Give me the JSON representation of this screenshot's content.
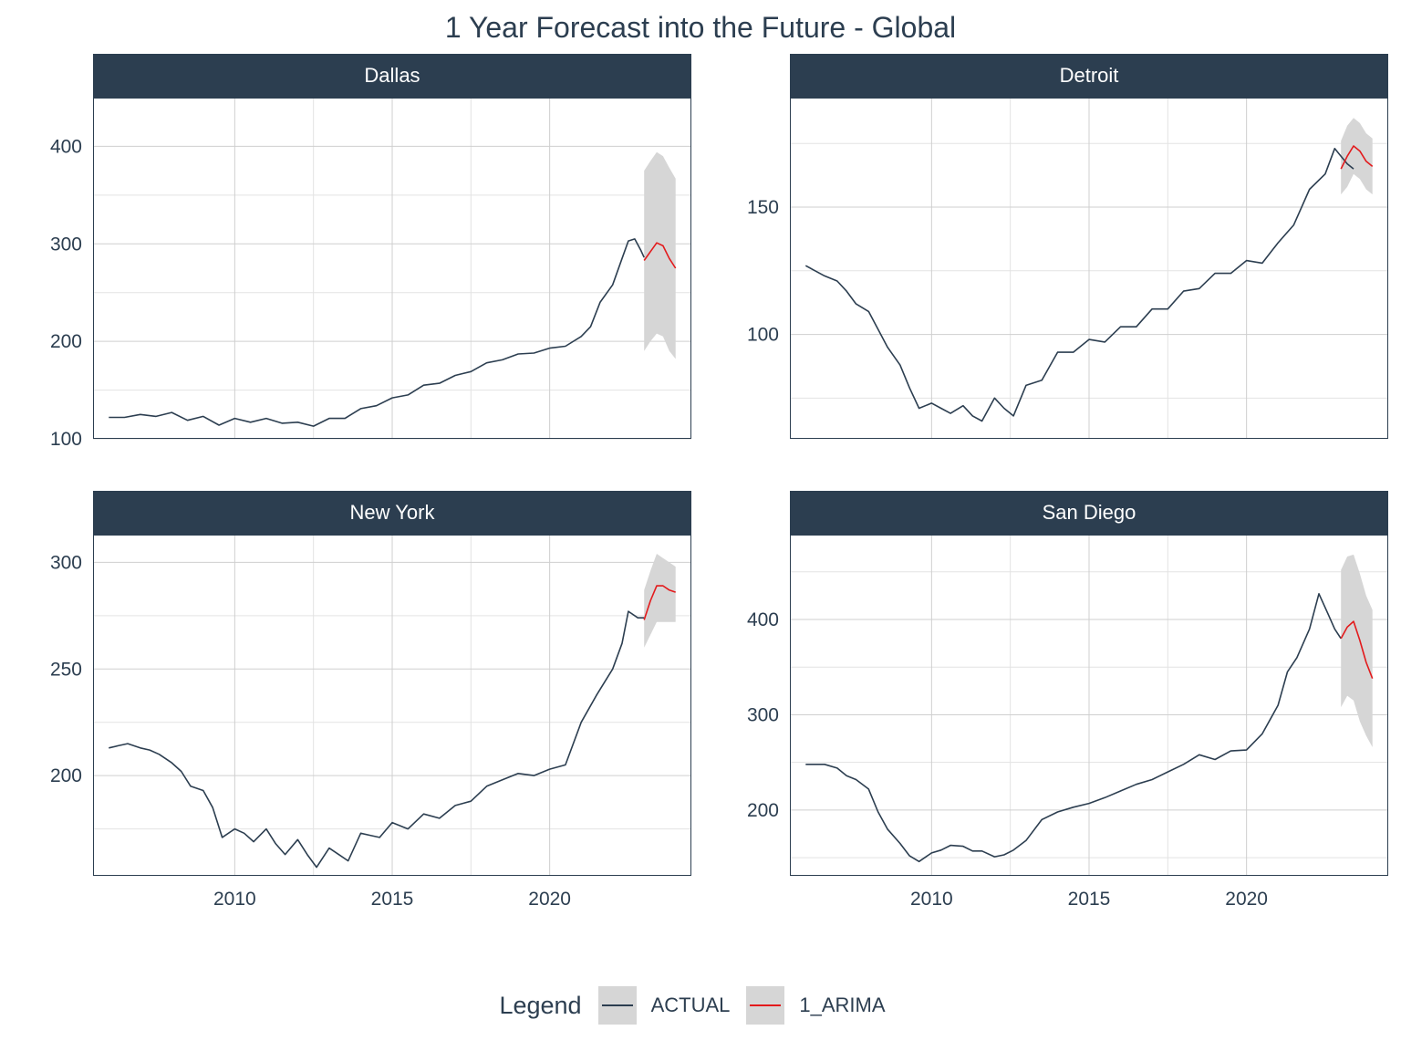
{
  "chart_data": {
    "type": "line",
    "title": "1 Year Forecast into the Future - Global",
    "legend": {
      "title": "Legend",
      "placement": "bottom",
      "entries": [
        {
          "label": "ACTUAL",
          "color": "#2C3E50"
        },
        {
          "label": "1_ARIMA",
          "color": "#E31A1C"
        }
      ]
    },
    "band_color": "#D6D6D6",
    "grid": true,
    "xlim": [
      2005.5,
      2024.5
    ],
    "x_ticks": [
      2010,
      2015,
      2020
    ],
    "panels": [
      {
        "name": "Dallas",
        "ylim": [
          100,
          450
        ],
        "y_ticks": [
          100,
          200,
          300,
          400
        ],
        "minor_y": [
          150,
          250,
          350
        ],
        "actual": [
          [
            2006.0,
            122
          ],
          [
            2006.5,
            122
          ],
          [
            2007.0,
            125
          ],
          [
            2007.5,
            123
          ],
          [
            2008.0,
            127
          ],
          [
            2008.5,
            119
          ],
          [
            2009.0,
            123
          ],
          [
            2009.5,
            114
          ],
          [
            2010.0,
            121
          ],
          [
            2010.5,
            117
          ],
          [
            2011.0,
            121
          ],
          [
            2011.5,
            116
          ],
          [
            2012.0,
            117
          ],
          [
            2012.5,
            113
          ],
          [
            2013.0,
            121
          ],
          [
            2013.5,
            121
          ],
          [
            2014.0,
            131
          ],
          [
            2014.5,
            134
          ],
          [
            2015.0,
            142
          ],
          [
            2015.5,
            145
          ],
          [
            2016.0,
            155
          ],
          [
            2016.5,
            157
          ],
          [
            2017.0,
            165
          ],
          [
            2017.5,
            169
          ],
          [
            2018.0,
            178
          ],
          [
            2018.5,
            181
          ],
          [
            2019.0,
            187
          ],
          [
            2019.5,
            188
          ],
          [
            2020.0,
            193
          ],
          [
            2020.5,
            195
          ],
          [
            2021.0,
            205
          ],
          [
            2021.3,
            215
          ],
          [
            2021.6,
            240
          ],
          [
            2022.0,
            258
          ],
          [
            2022.3,
            285
          ],
          [
            2022.5,
            303
          ],
          [
            2022.7,
            305
          ],
          [
            2022.9,
            293
          ],
          [
            2023.0,
            286
          ]
        ],
        "forecast": [
          [
            2023.0,
            283
          ],
          [
            2023.2,
            292
          ],
          [
            2023.4,
            301
          ],
          [
            2023.6,
            298
          ],
          [
            2023.8,
            285
          ],
          [
            2024.0,
            275
          ]
        ],
        "lower": [
          [
            2023.0,
            190
          ],
          [
            2023.2,
            200
          ],
          [
            2023.4,
            208
          ],
          [
            2023.6,
            205
          ],
          [
            2023.8,
            190
          ],
          [
            2024.0,
            182
          ]
        ],
        "upper": [
          [
            2023.0,
            375
          ],
          [
            2023.2,
            385
          ],
          [
            2023.4,
            394
          ],
          [
            2023.6,
            390
          ],
          [
            2023.8,
            378
          ],
          [
            2024.0,
            367
          ]
        ]
      },
      {
        "name": "Detroit",
        "ylim": [
          59,
          193
        ],
        "y_ticks": [
          100,
          150
        ],
        "minor_y": [
          75,
          125,
          175
        ],
        "actual": [
          [
            2006.0,
            127
          ],
          [
            2006.3,
            125
          ],
          [
            2006.6,
            123
          ],
          [
            2007.0,
            121
          ],
          [
            2007.3,
            117
          ],
          [
            2007.6,
            112
          ],
          [
            2008.0,
            109
          ],
          [
            2008.3,
            102
          ],
          [
            2008.6,
            95
          ],
          [
            2009.0,
            88
          ],
          [
            2009.3,
            79
          ],
          [
            2009.6,
            71
          ],
          [
            2010.0,
            73
          ],
          [
            2010.3,
            71
          ],
          [
            2010.6,
            69
          ],
          [
            2011.0,
            72
          ],
          [
            2011.3,
            68
          ],
          [
            2011.6,
            66
          ],
          [
            2012.0,
            75
          ],
          [
            2012.3,
            71
          ],
          [
            2012.6,
            68
          ],
          [
            2013.0,
            80
          ],
          [
            2013.5,
            82
          ],
          [
            2014.0,
            93
          ],
          [
            2014.5,
            93
          ],
          [
            2015.0,
            98
          ],
          [
            2015.5,
            97
          ],
          [
            2016.0,
            103
          ],
          [
            2016.5,
            103
          ],
          [
            2017.0,
            110
          ],
          [
            2017.5,
            110
          ],
          [
            2018.0,
            117
          ],
          [
            2018.5,
            118
          ],
          [
            2019.0,
            124
          ],
          [
            2019.5,
            124
          ],
          [
            2020.0,
            129
          ],
          [
            2020.5,
            128
          ],
          [
            2021.0,
            136
          ],
          [
            2021.5,
            143
          ],
          [
            2022.0,
            157
          ],
          [
            2022.5,
            163
          ],
          [
            2022.8,
            173
          ],
          [
            2023.0,
            170
          ],
          [
            2023.2,
            167
          ],
          [
            2023.4,
            165
          ]
        ],
        "forecast": [
          [
            2023.0,
            165
          ],
          [
            2023.2,
            170
          ],
          [
            2023.4,
            174
          ],
          [
            2023.6,
            172
          ],
          [
            2023.8,
            168
          ],
          [
            2024.0,
            166
          ]
        ],
        "lower": [
          [
            2023.0,
            155
          ],
          [
            2023.2,
            158
          ],
          [
            2023.4,
            163
          ],
          [
            2023.6,
            161
          ],
          [
            2023.8,
            157
          ],
          [
            2024.0,
            155
          ]
        ],
        "upper": [
          [
            2023.0,
            176
          ],
          [
            2023.2,
            182
          ],
          [
            2023.4,
            185
          ],
          [
            2023.6,
            183
          ],
          [
            2023.8,
            179
          ],
          [
            2024.0,
            177
          ]
        ]
      },
      {
        "name": "New York",
        "ylim": [
          153,
          313
        ],
        "y_ticks": [
          200,
          250,
          300
        ],
        "minor_y": [
          175,
          225,
          275
        ],
        "actual": [
          [
            2006.0,
            213
          ],
          [
            2006.3,
            214
          ],
          [
            2006.6,
            215
          ],
          [
            2007.0,
            213
          ],
          [
            2007.3,
            212
          ],
          [
            2007.6,
            210
          ],
          [
            2008.0,
            206
          ],
          [
            2008.3,
            202
          ],
          [
            2008.6,
            195
          ],
          [
            2009.0,
            193
          ],
          [
            2009.3,
            185
          ],
          [
            2009.6,
            171
          ],
          [
            2010.0,
            175
          ],
          [
            2010.3,
            173
          ],
          [
            2010.6,
            169
          ],
          [
            2011.0,
            175
          ],
          [
            2011.3,
            168
          ],
          [
            2011.6,
            163
          ],
          [
            2012.0,
            170
          ],
          [
            2012.3,
            163
          ],
          [
            2012.6,
            157
          ],
          [
            2013.0,
            166
          ],
          [
            2013.3,
            163
          ],
          [
            2013.6,
            160
          ],
          [
            2014.0,
            173
          ],
          [
            2014.3,
            172
          ],
          [
            2014.6,
            171
          ],
          [
            2015.0,
            178
          ],
          [
            2015.5,
            175
          ],
          [
            2016.0,
            182
          ],
          [
            2016.5,
            180
          ],
          [
            2017.0,
            186
          ],
          [
            2017.5,
            188
          ],
          [
            2018.0,
            195
          ],
          [
            2018.5,
            198
          ],
          [
            2019.0,
            201
          ],
          [
            2019.5,
            200
          ],
          [
            2020.0,
            203
          ],
          [
            2020.5,
            205
          ],
          [
            2021.0,
            225
          ],
          [
            2021.5,
            238
          ],
          [
            2022.0,
            250
          ],
          [
            2022.3,
            262
          ],
          [
            2022.5,
            277
          ],
          [
            2022.8,
            274
          ],
          [
            2023.0,
            274
          ]
        ],
        "forecast": [
          [
            2023.0,
            273
          ],
          [
            2023.2,
            282
          ],
          [
            2023.4,
            289
          ],
          [
            2023.6,
            289
          ],
          [
            2023.8,
            287
          ],
          [
            2024.0,
            286
          ]
        ],
        "lower": [
          [
            2023.0,
            260
          ],
          [
            2023.2,
            266
          ],
          [
            2023.4,
            272
          ],
          [
            2023.6,
            272
          ],
          [
            2023.8,
            272
          ],
          [
            2024.0,
            272
          ]
        ],
        "upper": [
          [
            2023.0,
            287
          ],
          [
            2023.2,
            296
          ],
          [
            2023.4,
            304
          ],
          [
            2023.6,
            302
          ],
          [
            2023.8,
            300
          ],
          [
            2024.0,
            298
          ]
        ]
      },
      {
        "name": "San Diego",
        "ylim": [
          131,
          489
        ],
        "y_ticks": [
          200,
          300,
          400
        ],
        "minor_y": [
          150,
          250,
          350,
          450
        ],
        "actual": [
          [
            2006.0,
            248
          ],
          [
            2006.3,
            248
          ],
          [
            2006.6,
            248
          ],
          [
            2007.0,
            244
          ],
          [
            2007.3,
            236
          ],
          [
            2007.6,
            232
          ],
          [
            2008.0,
            222
          ],
          [
            2008.3,
            198
          ],
          [
            2008.6,
            180
          ],
          [
            2009.0,
            165
          ],
          [
            2009.3,
            152
          ],
          [
            2009.6,
            146
          ],
          [
            2010.0,
            155
          ],
          [
            2010.3,
            158
          ],
          [
            2010.6,
            163
          ],
          [
            2011.0,
            162
          ],
          [
            2011.3,
            157
          ],
          [
            2011.6,
            157
          ],
          [
            2012.0,
            151
          ],
          [
            2012.3,
            153
          ],
          [
            2012.6,
            158
          ],
          [
            2013.0,
            168
          ],
          [
            2013.5,
            190
          ],
          [
            2014.0,
            198
          ],
          [
            2014.5,
            203
          ],
          [
            2015.0,
            207
          ],
          [
            2015.5,
            213
          ],
          [
            2016.0,
            220
          ],
          [
            2016.5,
            227
          ],
          [
            2017.0,
            232
          ],
          [
            2017.5,
            240
          ],
          [
            2018.0,
            248
          ],
          [
            2018.5,
            258
          ],
          [
            2019.0,
            253
          ],
          [
            2019.5,
            262
          ],
          [
            2020.0,
            263
          ],
          [
            2020.5,
            280
          ],
          [
            2021.0,
            310
          ],
          [
            2021.3,
            345
          ],
          [
            2021.6,
            360
          ],
          [
            2022.0,
            390
          ],
          [
            2022.3,
            427
          ],
          [
            2022.6,
            405
          ],
          [
            2022.8,
            390
          ],
          [
            2023.0,
            380
          ]
        ],
        "forecast": [
          [
            2023.0,
            380
          ],
          [
            2023.2,
            392
          ],
          [
            2023.4,
            398
          ],
          [
            2023.6,
            378
          ],
          [
            2023.8,
            355
          ],
          [
            2024.0,
            338
          ]
        ],
        "lower": [
          [
            2023.0,
            308
          ],
          [
            2023.2,
            320
          ],
          [
            2023.4,
            315
          ],
          [
            2023.6,
            293
          ],
          [
            2023.8,
            278
          ],
          [
            2024.0,
            266
          ]
        ],
        "upper": [
          [
            2023.0,
            452
          ],
          [
            2023.2,
            466
          ],
          [
            2023.4,
            468
          ],
          [
            2023.6,
            448
          ],
          [
            2023.8,
            425
          ],
          [
            2024.0,
            410
          ]
        ]
      }
    ]
  }
}
